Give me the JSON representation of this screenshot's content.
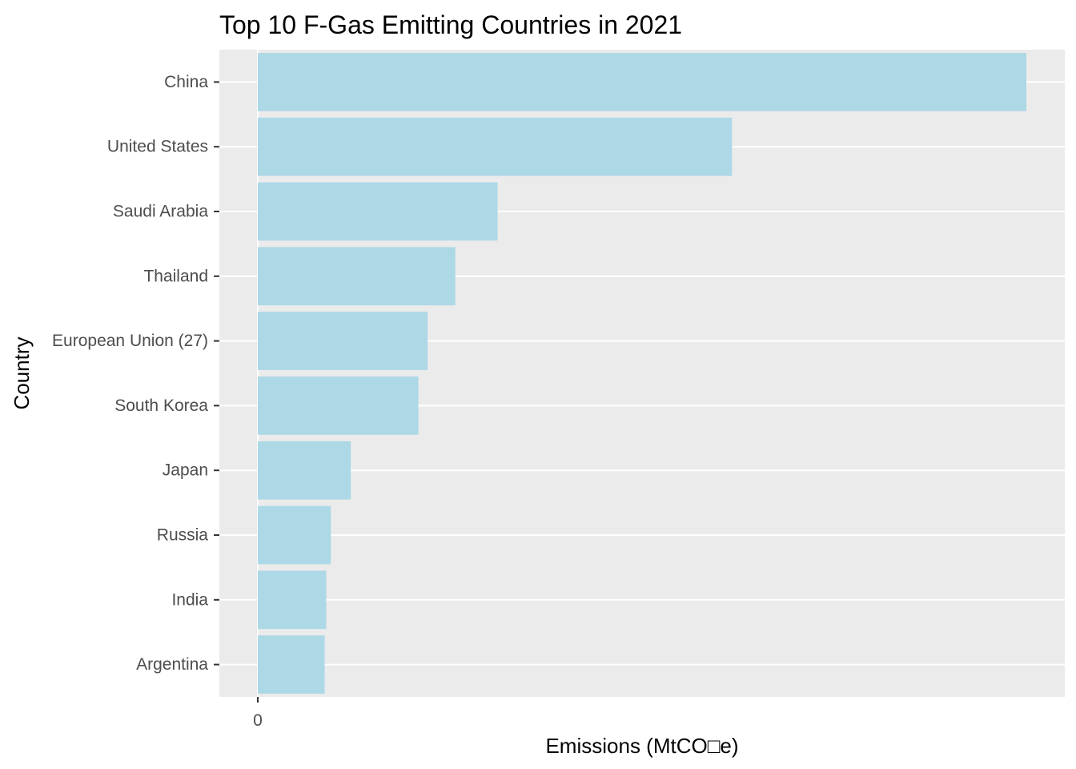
{
  "chart_data": {
    "type": "bar",
    "orientation": "horizontal",
    "title": "Top 10 F-Gas Emitting Countries in 2021",
    "xlabel": "Emissions (MtCO□e)",
    "ylabel": "Country",
    "categories": [
      "China",
      "United States",
      "Saudi Arabia",
      "Thailand",
      "European Union (27)",
      "South Korea",
      "Japan",
      "Russia",
      "India",
      "Argentina"
    ],
    "values": [
      1000,
      617,
      312,
      257,
      221,
      209,
      121,
      95,
      89,
      87
    ],
    "x_ticks": [
      0
    ],
    "x_tick_labels": [
      "0"
    ],
    "xlim": [
      -50,
      1050
    ],
    "grid": true,
    "bar_color": "#ADD8E6",
    "panel_color": "#EBEBEB",
    "grid_color": "#FFFFFF"
  }
}
